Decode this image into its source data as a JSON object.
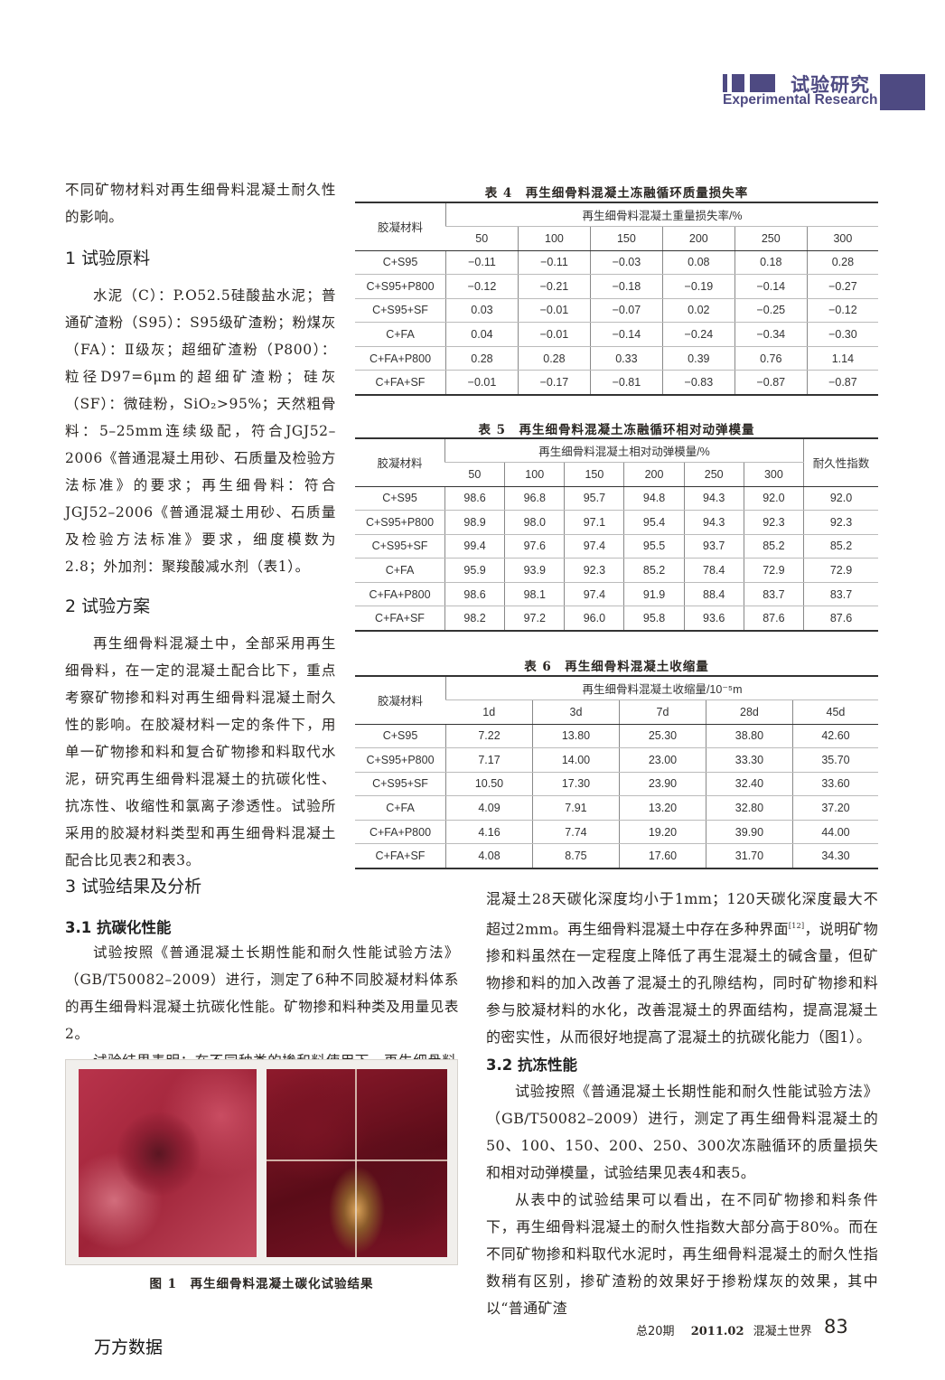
{
  "header": {
    "section_cn": "试验研究",
    "section_en": "Experimental Research",
    "brand_color": "#4e4a82"
  },
  "left": {
    "intro": "不同矿物材料对再生细骨料混凝土耐久性的影响。",
    "s1_title": "1 试验原料",
    "s1_body": "水泥（C）：P.O52.5硅酸盐水泥；普通矿渣粉（S95）：S95级矿渣粉；粉煤灰（FA）：Ⅱ级灰；超细矿渣粉（P800）：粒径D97=6μm的超细矿渣粉；硅灰（SF）：微硅粉，SiO₂>95%；天然粗骨料：5–25mm连续级配，符合JGJ52–2006《普通混凝土用砂、石质量及检验方法标准》的要求；再生细骨料：符合JGJ52–2006《普通混凝土用砂、石质量及检验方法标准》要求，细度模数为2.8；外加剂：聚羧酸减水剂（表1）。",
    "s2_title": "2 试验方案",
    "s2_body": "再生细骨料混凝土中，全部采用再生细骨料，在一定的混凝土配合比下，重点考察矿物掺和料对再生细骨料混凝土耐久性的影响。在胶凝材料一定的条件下，用单一矿物掺和料和复合矿物掺和料取代水泥，研究再生细骨料混凝土的抗碳化性、抗冻性、收缩性和氯离子渗透性。试验所采用的胶凝材料类型和再生细骨料混凝土配合比见表2和表3。",
    "s3_title": "3 试验结果及分析",
    "s31_title": "3.1 抗碳化性能",
    "s31_p1": "试验按照《普通混凝土长期性能和耐久性能试验方法》（GB/T50082–2009）进行，测定了6种不同胶凝材料体系的再生细骨料混凝土抗碳化性能。矿物掺和料种类及用量见表2。",
    "s31_p2": "试验结果表明：在不同种类的掺和料使用下，再生细骨料",
    "figure_caption": "图 1　再生细骨料混凝土碳化试验结果"
  },
  "right": {
    "p1a": "混凝土28天碳化深度均小于1mm；120天碳化深度最大不超过2mm。再生细骨料混凝土中存在多种界面",
    "p1_ref": "[12]",
    "p1b": "，说明矿物掺和料虽然在一定程度上降低了再生混凝土的碱含量，但矿物掺和料的加入改善了混凝土的孔隙结构，同时矿物掺和料参与胶凝材料的水化，改善混凝土的界面结构，提高混凝土的密实性，从而很好地提高了混凝土的抗碳化能力（图1）。",
    "s32_title": "3.2 抗冻性能",
    "s32_p1": "试验按照《普通混凝土长期性能和耐久性能试验方法》（GB/T50082–2009）进行，测定了再生细骨料混凝土的50、100、150、200、250、300次冻融循环的质量损失和相对动弹模量，试验结果见表4和表5。",
    "s32_p2": "从表中的试验结果可以看出，在不同矿物掺和料条件下，再生细骨料混凝土的耐久性指数大部分高于80%。而在不同矿物掺和料取代水泥时，再生细骨料混凝土的耐久性指数稍有区别，掺矿渣粉的效果好于掺粉煤灰的效果，其中以“普通矿渣"
  },
  "table4": {
    "caption": "表 4　再生细骨料混凝土冻融循环质量损失率",
    "row_header": "胶凝材料",
    "group_header": "再生细骨料混凝土重量损失率/%",
    "columns": [
      "50",
      "100",
      "150",
      "200",
      "250",
      "300"
    ],
    "rows": [
      [
        "C+S95",
        "−0.11",
        "−0.11",
        "−0.03",
        "0.08",
        "0.18",
        "0.28"
      ],
      [
        "C+S95+P800",
        "−0.12",
        "−0.21",
        "−0.18",
        "−0.19",
        "−0.14",
        "−0.27"
      ],
      [
        "C+S95+SF",
        "0.03",
        "−0.01",
        "−0.07",
        "0.02",
        "−0.25",
        "−0.12"
      ],
      [
        "C+FA",
        "0.04",
        "−0.01",
        "−0.14",
        "−0.24",
        "−0.34",
        "−0.30"
      ],
      [
        "C+FA+P800",
        "0.28",
        "0.28",
        "0.33",
        "0.39",
        "0.76",
        "1.14"
      ],
      [
        "C+FA+SF",
        "−0.01",
        "−0.17",
        "−0.81",
        "−0.83",
        "−0.87",
        "−0.87"
      ]
    ]
  },
  "table5": {
    "caption": "表 5　再生细骨料混凝土冻融循环相对动弹模量",
    "row_header": "胶凝材料",
    "group_header": "再生细骨料混凝土相对动弹模量/%",
    "extra_header": "耐久性指数",
    "columns": [
      "50",
      "100",
      "150",
      "200",
      "250",
      "300"
    ],
    "rows": [
      [
        "C+S95",
        "98.6",
        "96.8",
        "95.7",
        "94.8",
        "94.3",
        "92.0",
        "92.0"
      ],
      [
        "C+S95+P800",
        "98.9",
        "98.0",
        "97.1",
        "95.4",
        "94.3",
        "92.3",
        "92.3"
      ],
      [
        "C+S95+SF",
        "99.4",
        "97.6",
        "97.4",
        "95.5",
        "93.7",
        "85.2",
        "85.2"
      ],
      [
        "C+FA",
        "95.9",
        "93.9",
        "92.3",
        "85.2",
        "78.4",
        "72.9",
        "72.9"
      ],
      [
        "C+FA+P800",
        "98.6",
        "98.1",
        "97.4",
        "91.9",
        "88.4",
        "83.7",
        "83.7"
      ],
      [
        "C+FA+SF",
        "98.2",
        "97.2",
        "96.0",
        "95.8",
        "93.6",
        "87.6",
        "87.6"
      ]
    ]
  },
  "table6": {
    "caption": "表 6　再生细骨料混凝土收缩量",
    "row_header": "胶凝材料",
    "group_header": "再生细骨料混凝土收缩量/10⁻⁵m",
    "columns": [
      "1d",
      "3d",
      "7d",
      "28d",
      "45d"
    ],
    "rows": [
      [
        "C+S95",
        "7.22",
        "13.80",
        "25.30",
        "38.80",
        "42.60"
      ],
      [
        "C+S95+P800",
        "7.17",
        "14.00",
        "23.00",
        "33.30",
        "35.70"
      ],
      [
        "C+S95+SF",
        "10.50",
        "17.30",
        "23.90",
        "32.40",
        "33.60"
      ],
      [
        "C+FA",
        "4.09",
        "7.91",
        "13.20",
        "32.80",
        "37.20"
      ],
      [
        "C+FA+P800",
        "4.16",
        "7.74",
        "19.20",
        "39.90",
        "44.00"
      ],
      [
        "C+FA+SF",
        "4.08",
        "8.75",
        "17.60",
        "31.70",
        "34.30"
      ]
    ]
  },
  "footer": {
    "issue": "总20期",
    "date": "2011.02",
    "journal": "混凝土世界",
    "page": "83",
    "watermark": "万方数据"
  }
}
